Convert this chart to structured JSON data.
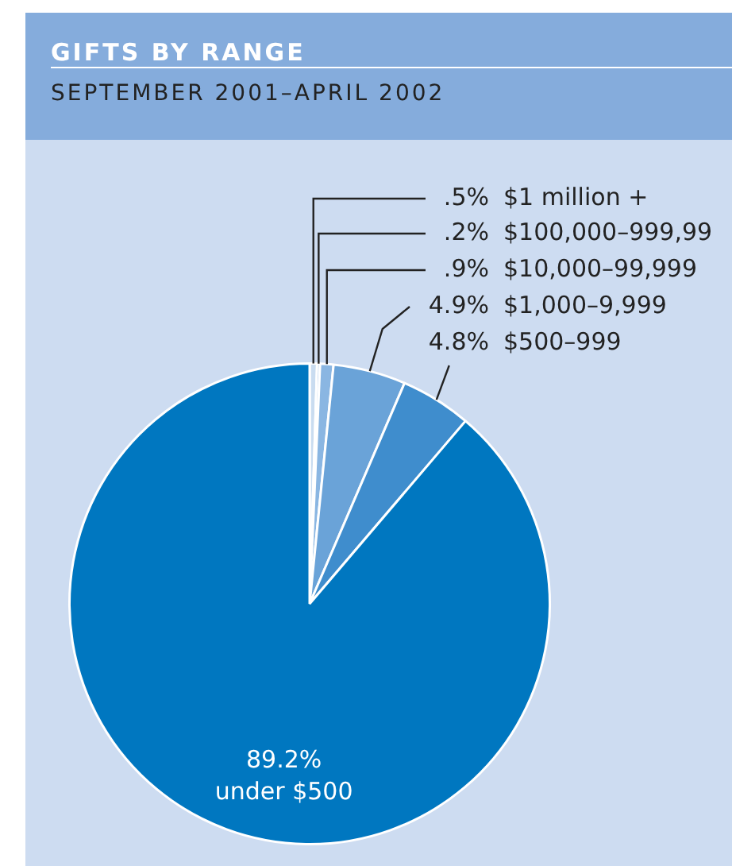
{
  "chart_data": {
    "type": "pie",
    "title": "GIFTS BY RANGE",
    "subtitle": "SEPTEMBER 2001–APRIL 2002",
    "categories": [
      "$1 million +",
      "$100,000–999,99",
      "$10,000–99,999",
      "$1,000–9,999",
      "$500–999",
      "under $500"
    ],
    "values": [
      0.5,
      0.2,
      0.9,
      4.9,
      4.8,
      89.2
    ],
    "value_labels": [
      ".5%",
      ".2%",
      ".9%",
      "4.9%",
      "4.8%",
      "89.2%"
    ],
    "colors": [
      "#c9dcf0",
      "#a8c8ea",
      "#8ab6e2",
      "#6aa3d8",
      "#3f8dcd",
      "#0077c0"
    ],
    "legend": false
  }
}
